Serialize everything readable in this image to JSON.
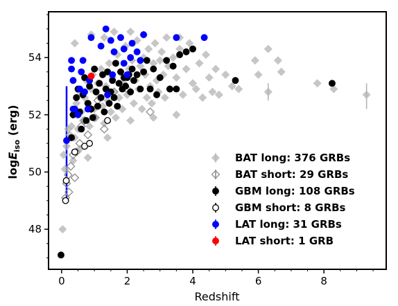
{
  "chart_data": {
    "type": "scatter",
    "xlabel": "Redshift",
    "ylabel_main": "log",
    "ylabel_var": "E",
    "ylabel_sub": "iso",
    "ylabel_unit": " (erg)",
    "xlim": [
      -0.4,
      9.9
    ],
    "ylim": [
      46.6,
      55.6
    ],
    "xticks": [
      "0",
      "2",
      "4",
      "6",
      "8"
    ],
    "xtick_values": [
      0,
      2,
      4,
      6,
      8
    ],
    "yticks": [
      "48",
      "50",
      "52",
      "54"
    ],
    "ytick_values": [
      48,
      50,
      52,
      54
    ],
    "grid": false,
    "legend_position": "lower-right",
    "series": [
      {
        "name": "BAT long: 376 GRBs",
        "marker": "filled-diamond",
        "color": "#b4b4b4",
        "points": [
          [
            0.03,
            48.0
          ],
          [
            0.06,
            50.6
          ],
          [
            0.1,
            50.1
          ],
          [
            0.15,
            50.9
          ],
          [
            0.25,
            51.3
          ],
          [
            0.3,
            51.6
          ],
          [
            0.35,
            52.0
          ],
          [
            0.4,
            51.2
          ],
          [
            0.45,
            52.4
          ],
          [
            0.5,
            51.5
          ],
          [
            0.55,
            52.8
          ],
          [
            0.6,
            52.1
          ],
          [
            0.65,
            51.8
          ],
          [
            0.7,
            52.6
          ],
          [
            0.75,
            53.2
          ],
          [
            0.8,
            52.4
          ],
          [
            0.85,
            51.6
          ],
          [
            0.9,
            52.9
          ],
          [
            0.95,
            53.4
          ],
          [
            1.0,
            52.2
          ],
          [
            1.05,
            51.9
          ],
          [
            1.1,
            53.1
          ],
          [
            1.15,
            52.6
          ],
          [
            1.2,
            53.6
          ],
          [
            1.25,
            52.3
          ],
          [
            1.3,
            51.7
          ],
          [
            1.35,
            53.0
          ],
          [
            1.4,
            52.5
          ],
          [
            1.45,
            53.8
          ],
          [
            1.5,
            52.1
          ],
          [
            1.55,
            53.3
          ],
          [
            1.6,
            52.8
          ],
          [
            1.65,
            51.9
          ],
          [
            1.7,
            54.1
          ],
          [
            1.75,
            52.6
          ],
          [
            1.8,
            53.5
          ],
          [
            1.85,
            52.2
          ],
          [
            1.9,
            53.1
          ],
          [
            1.95,
            54.4
          ],
          [
            2.0,
            52.7
          ],
          [
            2.05,
            53.6
          ],
          [
            2.1,
            51.8
          ],
          [
            2.15,
            53.9
          ],
          [
            2.2,
            52.4
          ],
          [
            2.25,
            53.2
          ],
          [
            2.3,
            54.6
          ],
          [
            2.35,
            52.9
          ],
          [
            2.4,
            53.7
          ],
          [
            2.45,
            52.2
          ],
          [
            2.5,
            54.0
          ],
          [
            2.55,
            53.4
          ],
          [
            2.6,
            52.6
          ],
          [
            2.65,
            54.3
          ],
          [
            2.7,
            53.0
          ],
          [
            2.75,
            52.4
          ],
          [
            2.8,
            53.8
          ],
          [
            2.85,
            54.5
          ],
          [
            2.9,
            53.2
          ],
          [
            2.95,
            52.8
          ],
          [
            3.0,
            53.9
          ],
          [
            3.05,
            54.2
          ],
          [
            3.1,
            53.4
          ],
          [
            3.15,
            52.6
          ],
          [
            3.2,
            54.7
          ],
          [
            3.25,
            53.7
          ],
          [
            3.3,
            52.9
          ],
          [
            3.4,
            54.0
          ],
          [
            3.5,
            53.3
          ],
          [
            3.6,
            54.3
          ],
          [
            3.7,
            52.7
          ],
          [
            3.8,
            53.6
          ],
          [
            3.9,
            54.5
          ],
          [
            4.0,
            53.1
          ],
          [
            4.1,
            52.9
          ],
          [
            4.2,
            53.8
          ],
          [
            4.3,
            52.6
          ],
          [
            4.4,
            54.1
          ],
          [
            4.5,
            53.3
          ],
          [
            4.6,
            52.8
          ],
          [
            4.7,
            53.6
          ],
          [
            4.8,
            52.7
          ],
          [
            5.0,
            53.4
          ],
          [
            5.2,
            53.0
          ],
          [
            5.4,
            52.9
          ],
          [
            5.9,
            53.9
          ],
          [
            6.0,
            53.4
          ],
          [
            6.3,
            54.3
          ],
          [
            6.3,
            52.8
          ],
          [
            6.6,
            53.9
          ],
          [
            6.7,
            53.5
          ],
          [
            7.8,
            53.1
          ],
          [
            8.3,
            52.9
          ],
          [
            9.3,
            52.7
          ],
          [
            0.4,
            54.5
          ],
          [
            0.9,
            54.8
          ],
          [
            1.3,
            54.7
          ],
          [
            1.6,
            54.9
          ],
          [
            2.1,
            54.9
          ],
          [
            2.5,
            54.8
          ],
          [
            3.6,
            54.7
          ],
          [
            0.2,
            51.5
          ],
          [
            0.35,
            50.4
          ],
          [
            0.55,
            50.8
          ],
          [
            0.8,
            50.5
          ],
          [
            1.4,
            51.2
          ],
          [
            2.8,
            51.9
          ],
          [
            3.5,
            52.0
          ]
        ]
      },
      {
        "name": "BAT short: 29 GRBs",
        "marker": "open-diamond",
        "color": "#8c8c8c",
        "points": [
          [
            0.12,
            49.1
          ],
          [
            0.15,
            49.6
          ],
          [
            0.2,
            49.9
          ],
          [
            0.22,
            49.3
          ],
          [
            0.28,
            50.2
          ],
          [
            0.35,
            50.6
          ],
          [
            0.4,
            49.8
          ],
          [
            0.45,
            50.7
          ],
          [
            0.55,
            51.0
          ],
          [
            0.6,
            51.6
          ],
          [
            0.7,
            51.8
          ],
          [
            0.8,
            51.3
          ],
          [
            0.9,
            52.2
          ],
          [
            1.0,
            51.9
          ],
          [
            1.1,
            52.5
          ],
          [
            1.3,
            51.5
          ],
          [
            1.6,
            52.8
          ],
          [
            2.0,
            52.9
          ],
          [
            2.7,
            52.1
          ]
        ]
      },
      {
        "name": "GBM long: 108 GRBs",
        "marker": "filled-circle",
        "color": "#000000",
        "points": [
          [
            -0.02,
            47.1
          ],
          [
            0.3,
            51.2
          ],
          [
            0.35,
            52.0
          ],
          [
            0.4,
            50.7
          ],
          [
            0.45,
            52.6
          ],
          [
            0.5,
            52.9
          ],
          [
            0.55,
            52.1
          ],
          [
            0.6,
            51.5
          ],
          [
            0.65,
            52.7
          ],
          [
            0.7,
            53.3
          ],
          [
            0.75,
            51.8
          ],
          [
            0.8,
            52.4
          ],
          [
            0.85,
            53.0
          ],
          [
            0.9,
            52.2
          ],
          [
            0.95,
            51.9
          ],
          [
            1.0,
            53.6
          ],
          [
            1.05,
            52.8
          ],
          [
            1.1,
            52.3
          ],
          [
            1.15,
            53.1
          ],
          [
            1.2,
            52.6
          ],
          [
            1.25,
            53.4
          ],
          [
            1.3,
            52.1
          ],
          [
            1.35,
            52.9
          ],
          [
            1.4,
            53.5
          ],
          [
            1.45,
            52.4
          ],
          [
            1.5,
            52.8
          ],
          [
            1.55,
            53.2
          ],
          [
            1.6,
            52.6
          ],
          [
            1.65,
            53.8
          ],
          [
            1.7,
            52.3
          ],
          [
            1.75,
            53.1
          ],
          [
            1.8,
            53.5
          ],
          [
            1.85,
            52.9
          ],
          [
            1.9,
            53.3
          ],
          [
            1.95,
            53.0
          ],
          [
            2.0,
            53.3
          ],
          [
            2.05,
            53.4
          ],
          [
            2.1,
            52.8
          ],
          [
            2.15,
            53.6
          ],
          [
            2.2,
            53.2
          ],
          [
            2.3,
            53.4
          ],
          [
            2.4,
            52.9
          ],
          [
            2.5,
            53.5
          ],
          [
            2.6,
            53.9
          ],
          [
            2.7,
            52.9
          ],
          [
            2.8,
            53.6
          ],
          [
            2.9,
            52.7
          ],
          [
            3.0,
            53.3
          ],
          [
            3.2,
            53.9
          ],
          [
            3.3,
            52.9
          ],
          [
            3.4,
            53.7
          ],
          [
            3.5,
            52.9
          ],
          [
            3.6,
            54.1
          ],
          [
            3.8,
            54.2
          ],
          [
            4.0,
            54.3
          ],
          [
            5.3,
            53.2
          ],
          [
            8.25,
            53.1
          ]
        ]
      },
      {
        "name": "GBM short: 8 GRBs",
        "marker": "open-circle",
        "color": "#000000",
        "points": [
          [
            0.12,
            49.0
          ],
          [
            0.14,
            49.7
          ],
          [
            0.4,
            50.7
          ],
          [
            0.7,
            50.9
          ],
          [
            0.85,
            51.0
          ],
          [
            1.4,
            51.8
          ]
        ]
      },
      {
        "name": "LAT long: 31 GRBs",
        "marker": "filled-circle",
        "color": "#0000ff",
        "points": [
          [
            0.15,
            51.1
          ],
          [
            0.3,
            53.6
          ],
          [
            0.35,
            52.2
          ],
          [
            0.4,
            52.2
          ],
          [
            0.5,
            52.0
          ],
          [
            0.6,
            53.5
          ],
          [
            0.65,
            53.9
          ],
          [
            0.7,
            52.8
          ],
          [
            0.8,
            52.2
          ],
          [
            0.85,
            53.2
          ],
          [
            0.9,
            54.7
          ],
          [
            1.2,
            54.4
          ],
          [
            1.35,
            55.0
          ],
          [
            1.5,
            54.6
          ],
          [
            1.6,
            54.2
          ],
          [
            1.8,
            54.7
          ],
          [
            1.9,
            53.8
          ],
          [
            2.0,
            53.4
          ],
          [
            2.1,
            54.0
          ],
          [
            2.15,
            54.5
          ],
          [
            2.3,
            54.2
          ],
          [
            2.4,
            53.9
          ],
          [
            2.5,
            54.8
          ],
          [
            3.5,
            54.7
          ],
          [
            4.35,
            54.7
          ],
          [
            0.35,
            53.2
          ],
          [
            1.55,
            53.4
          ],
          [
            1.9,
            54.3
          ],
          [
            0.55,
            52.9
          ],
          [
            1.4,
            52.7
          ],
          [
            0.3,
            53.9
          ]
        ]
      },
      {
        "name": "LAT short: 1 GRB",
        "marker": "filled-circle",
        "color": "#ff0000",
        "points": [
          [
            0.9,
            53.35
          ]
        ]
      }
    ],
    "error_bars": [
      {
        "series": "LAT long: 31 GRBs",
        "x": 0.15,
        "y_low": 49.0,
        "y_high": 53.0
      },
      {
        "series": "BAT long: 376 GRBs",
        "x": 9.3,
        "y_low": 52.2,
        "y_high": 53.1
      },
      {
        "series": "BAT long: 376 GRBs",
        "x": 6.3,
        "y_low": 52.5,
        "y_high": 53.1
      }
    ]
  }
}
